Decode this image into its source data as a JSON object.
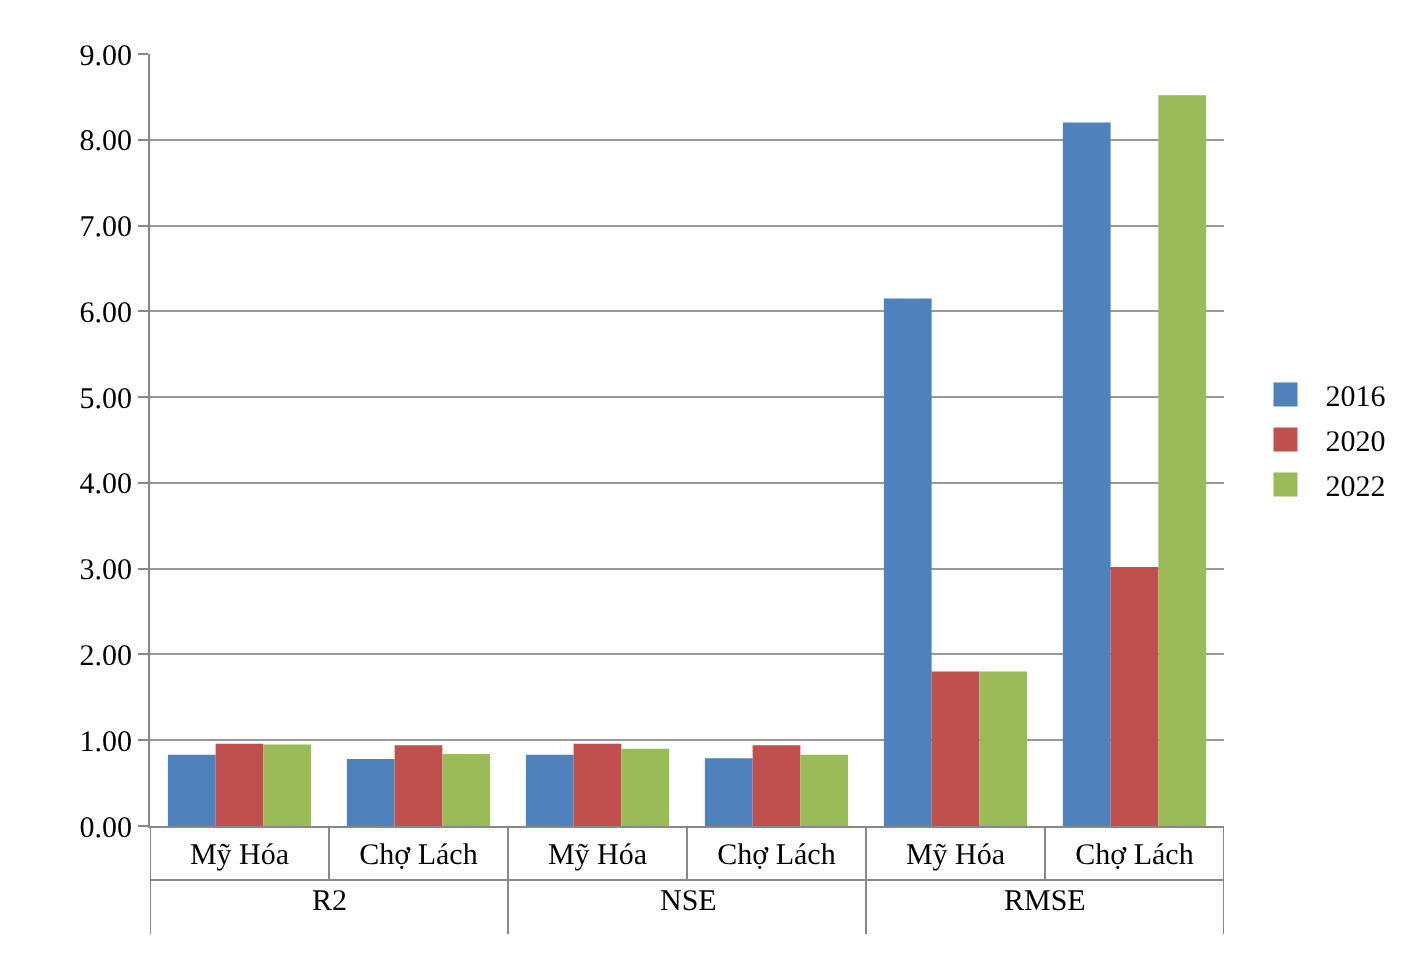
{
  "chart_data": {
    "type": "bar",
    "categories": [
      "Mỹ Hóa",
      "Chợ Lách",
      "Mỹ Hóa",
      "Chợ Lách",
      "Mỹ Hóa",
      "Chợ Lách"
    ],
    "annotations": [
      "R2",
      "NSE",
      "RMSE"
    ],
    "series": [
      {
        "name": "2016",
        "color": "#4f81bd",
        "values": [
          0.83,
          0.78,
          0.83,
          0.79,
          6.15,
          8.2
        ]
      },
      {
        "name": "2020",
        "color": "#c0504d",
        "values": [
          0.96,
          0.94,
          0.96,
          0.94,
          1.8,
          3.02
        ]
      },
      {
        "name": "2022",
        "color": "#9bbb59",
        "values": [
          0.95,
          0.84,
          0.9,
          0.83,
          1.8,
          8.52
        ]
      }
    ],
    "ylim": [
      0,
      9
    ],
    "yticks": [
      {
        "value": 0,
        "label": "0.00"
      },
      {
        "value": 1,
        "label": "1.00"
      },
      {
        "value": 2,
        "label": "2.00"
      },
      {
        "value": 3,
        "label": "3.00"
      },
      {
        "value": 4,
        "label": "4.00"
      },
      {
        "value": 5,
        "label": "5.00"
      },
      {
        "value": 6,
        "label": "6.00"
      },
      {
        "value": 7,
        "label": "7.00"
      },
      {
        "value": 8,
        "label": "8.00"
      },
      {
        "value": 9,
        "label": "9.00"
      }
    ],
    "grid": "y",
    "legend": "right"
  }
}
